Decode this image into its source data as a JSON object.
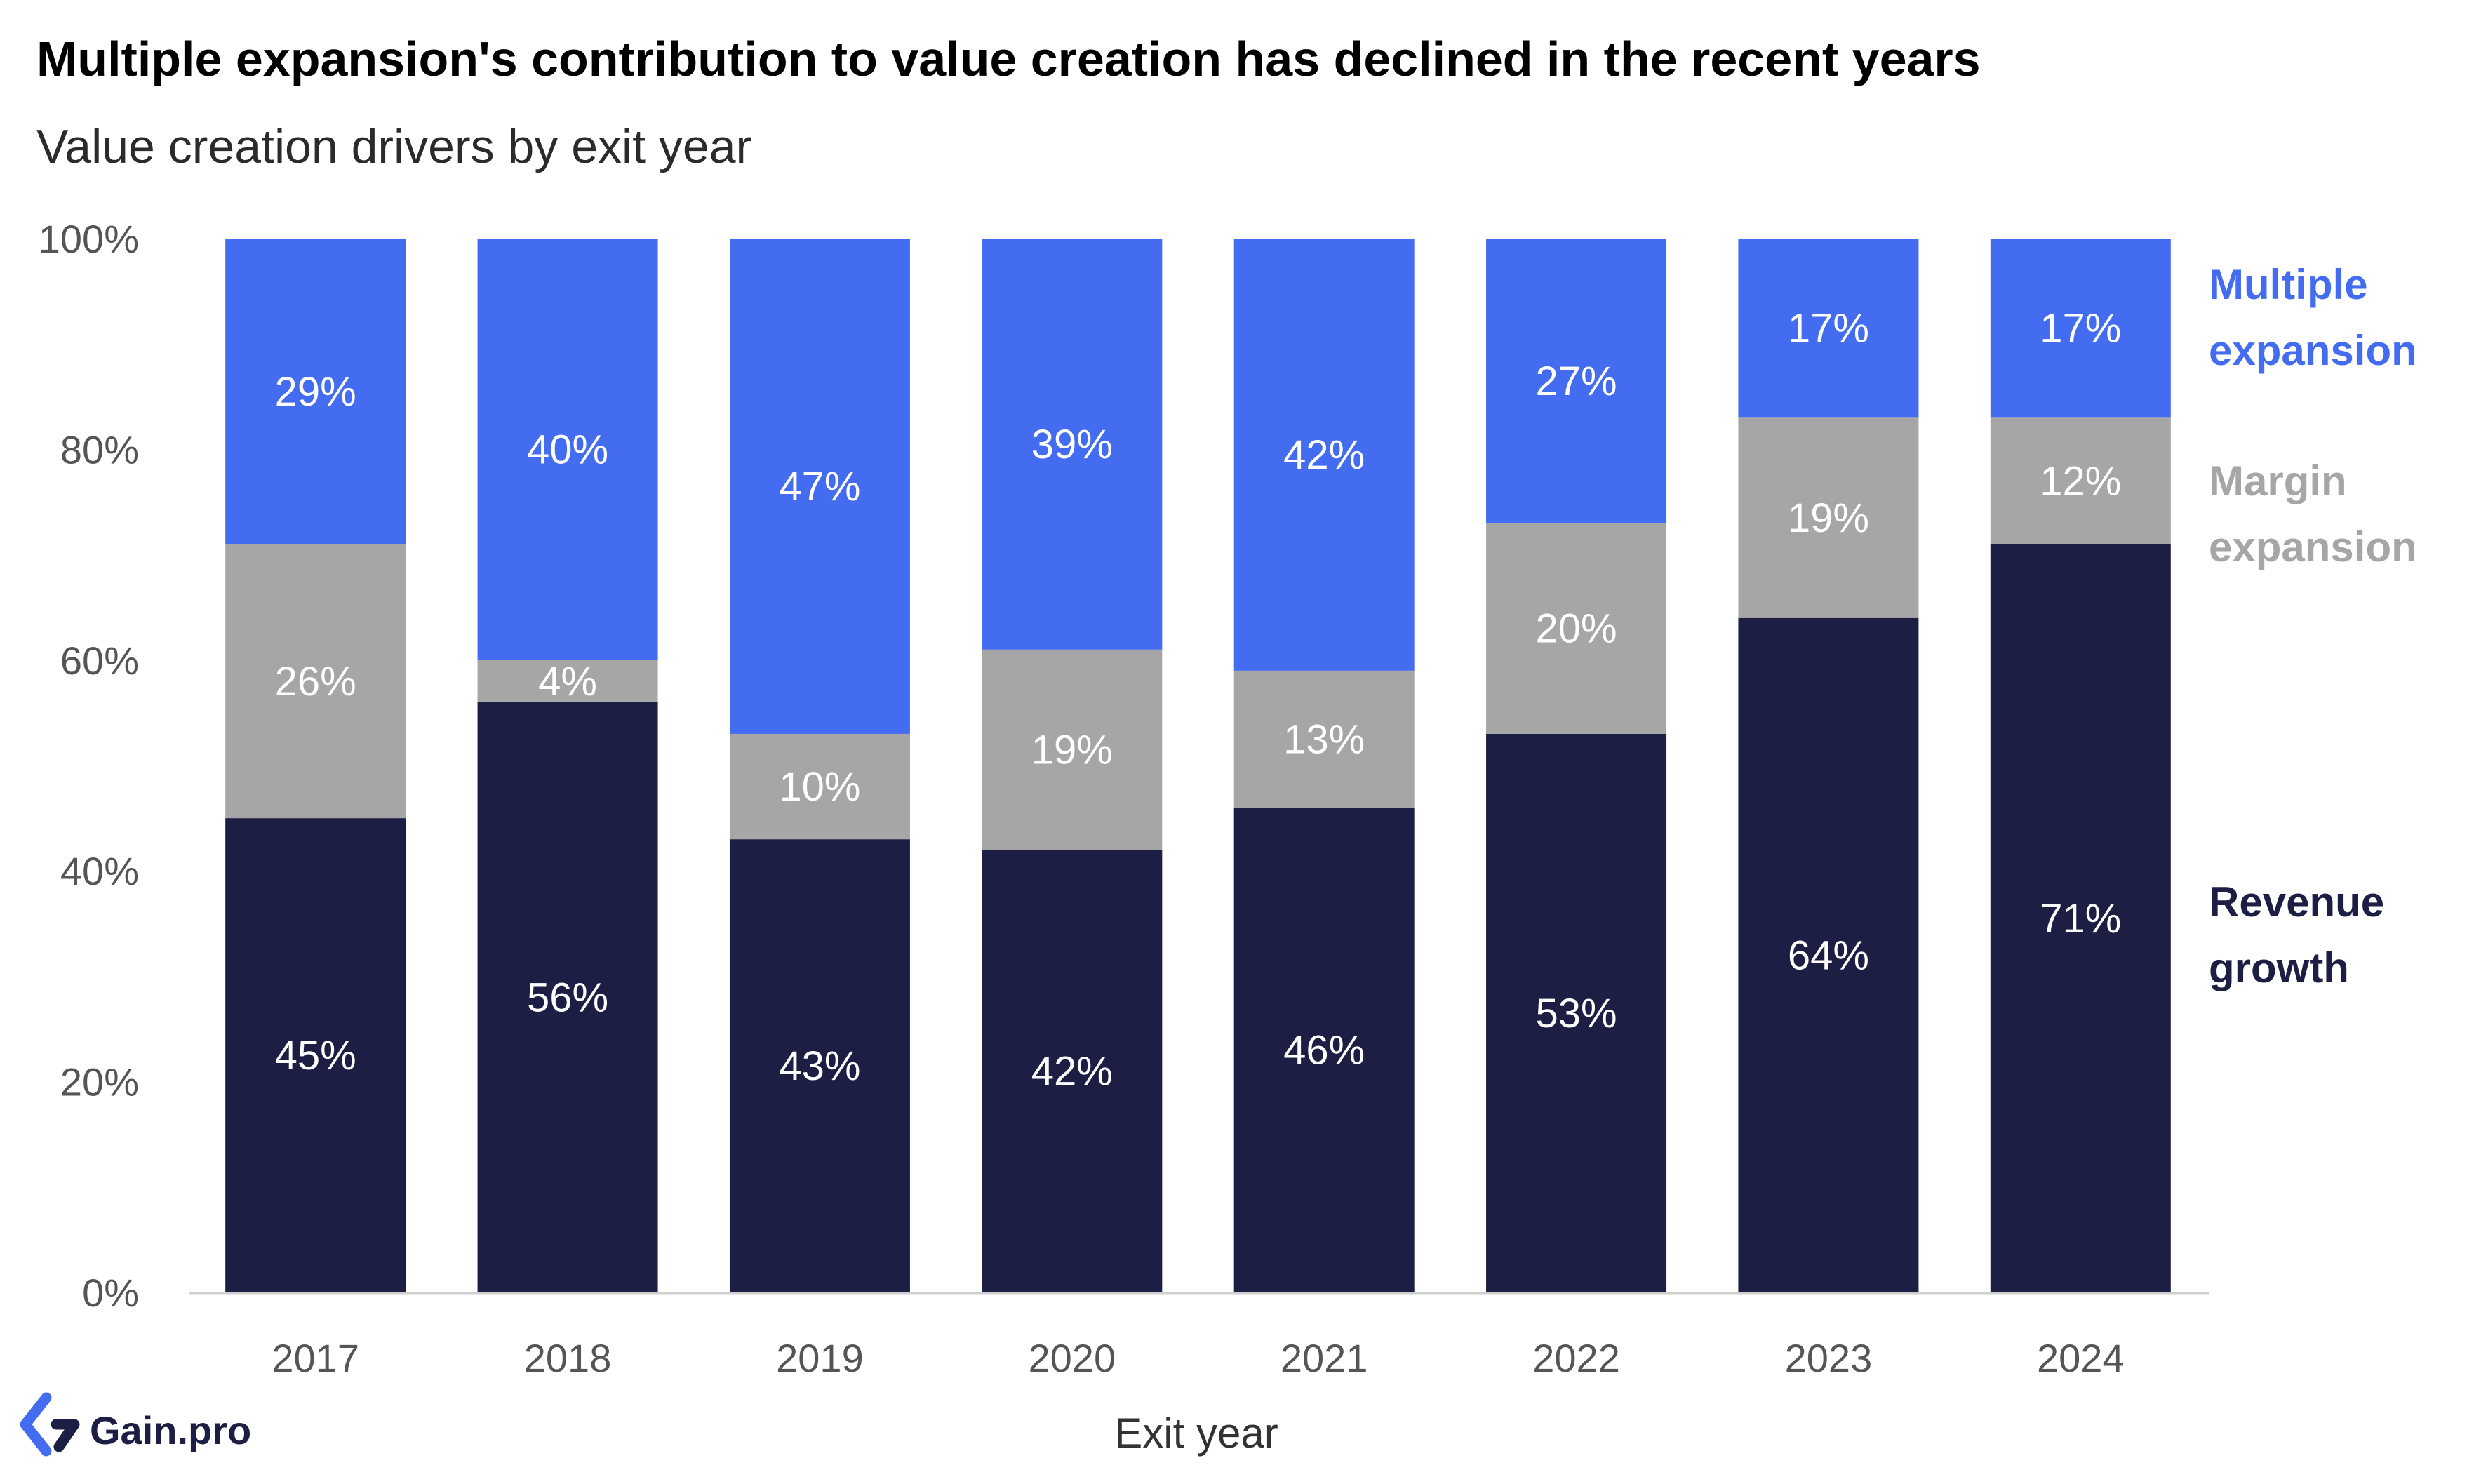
{
  "title": "Multiple expansion's contribution to value creation has declined in the recent years",
  "subtitle": "Value creation drivers by exit year",
  "brand": {
    "name": "Gain.pro",
    "icon": "gain-pro-logo-icon"
  },
  "chart_data": {
    "type": "bar",
    "stacked": true,
    "title": "Multiple expansion's contribution to value creation has declined in the recent years",
    "subtitle": "Value creation drivers by exit year",
    "xlabel": "Exit year",
    "ylabel": "",
    "ylim": [
      0,
      100
    ],
    "yticks": [
      "0%",
      "20%",
      "40%",
      "60%",
      "80%",
      "100%"
    ],
    "ytick_values": [
      0,
      20,
      40,
      60,
      80,
      100
    ],
    "categories": [
      "2017",
      "2018",
      "2019",
      "2020",
      "2021",
      "2022",
      "2023",
      "2024"
    ],
    "series": [
      {
        "name": "Revenue growth",
        "legend_lines": [
          "Revenue",
          "growth"
        ],
        "color": "#1d1e44",
        "values": [
          45,
          56,
          43,
          42,
          46,
          53,
          64,
          71
        ],
        "labels": [
          "45%",
          "56%",
          "43%",
          "42%",
          "46%",
          "53%",
          "64%",
          "71%"
        ]
      },
      {
        "name": "Margin expansion",
        "legend_lines": [
          "Margin",
          "expansion"
        ],
        "color": "#a6a6a6",
        "values": [
          26,
          4,
          10,
          19,
          13,
          20,
          19,
          12
        ],
        "labels": [
          "26%",
          "4%",
          "10%",
          "19%",
          "13%",
          "20%",
          "19%",
          "12%"
        ]
      },
      {
        "name": "Multiple expansion",
        "legend_lines": [
          "Multiple",
          "expansion"
        ],
        "color": "#436cf0",
        "values": [
          29,
          40,
          47,
          39,
          42,
          27,
          17,
          17
        ],
        "labels": [
          "29%",
          "40%",
          "47%",
          "39%",
          "42%",
          "27%",
          "17%",
          "17%"
        ]
      }
    ],
    "legend_placement": "right",
    "grid": false
  }
}
